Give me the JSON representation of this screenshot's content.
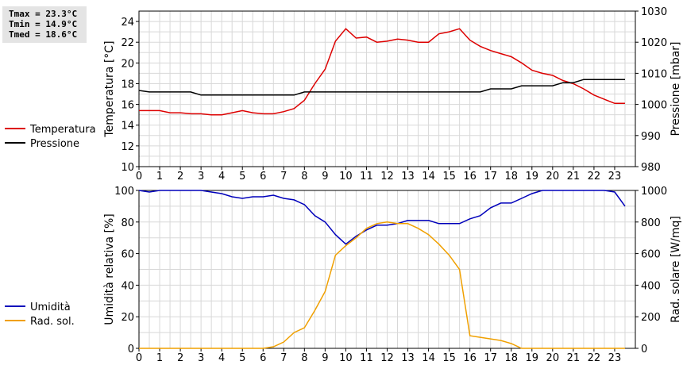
{
  "stats": {
    "tmax": "Tmax = 23.3°C",
    "tmin": "Tmin = 14.9°C",
    "tmed": "Tmed = 18.6°C"
  },
  "chart_data": [
    {
      "type": "line",
      "title": "",
      "xlabel": "",
      "ylabel": "Temperatura [°C]",
      "ylabel_right": "Pressione [mbar]",
      "xlim": [
        0,
        24
      ],
      "ylim": [
        10,
        25
      ],
      "ylim_right": [
        980,
        1030
      ],
      "x_ticks": [
        0,
        1,
        2,
        3,
        4,
        5,
        6,
        7,
        8,
        9,
        10,
        11,
        12,
        13,
        14,
        15,
        16,
        17,
        18,
        19,
        20,
        21,
        22,
        23
      ],
      "y_ticks": [
        10,
        12,
        14,
        16,
        18,
        20,
        22,
        24
      ],
      "y_ticks_right": [
        980,
        990,
        1000,
        1010,
        1020,
        1030
      ],
      "grid": true,
      "legend": "left",
      "series": [
        {
          "name": "Temperatura",
          "color": "#dd0000",
          "axis": "left",
          "x": [
            0,
            0.5,
            1,
            1.5,
            2,
            2.5,
            3,
            3.5,
            4,
            4.5,
            5,
            5.5,
            6,
            6.5,
            7,
            7.5,
            8,
            8.5,
            9,
            9.5,
            10,
            10.5,
            11,
            11.5,
            12,
            12.5,
            13,
            13.5,
            14,
            14.5,
            15,
            15.5,
            16,
            16.5,
            17,
            17.5,
            18,
            18.5,
            19,
            19.5,
            20,
            20.5,
            21,
            21.5,
            22,
            22.5,
            23,
            23.5
          ],
          "y": [
            15.4,
            15.4,
            15.4,
            15.2,
            15.2,
            15.1,
            15.1,
            15.0,
            15.0,
            15.2,
            15.4,
            15.2,
            15.1,
            15.1,
            15.3,
            15.6,
            16.4,
            18.0,
            19.4,
            22.1,
            23.3,
            22.4,
            22.5,
            22.0,
            22.1,
            22.3,
            22.2,
            22.0,
            22.0,
            22.8,
            23.0,
            23.3,
            22.2,
            21.6,
            21.2,
            20.9,
            20.6,
            20.0,
            19.3,
            19.0,
            18.8,
            18.3,
            18.0,
            17.5,
            16.9,
            16.5,
            16.1,
            16.1
          ]
        },
        {
          "name": "Pressione",
          "color": "#000000",
          "axis": "right",
          "x": [
            0,
            0.5,
            1,
            1.5,
            2,
            2.5,
            3,
            3.5,
            4,
            4.5,
            5,
            5.5,
            6,
            6.5,
            7,
            7.5,
            8,
            8.5,
            9,
            9.5,
            10,
            10.5,
            11,
            11.5,
            12,
            12.5,
            13,
            13.5,
            14,
            14.5,
            15,
            15.5,
            16,
            16.5,
            17,
            17.5,
            18,
            18.5,
            19,
            19.5,
            20,
            20.5,
            21,
            21.5,
            22,
            22.5,
            23,
            23.5
          ],
          "y": [
            1004.5,
            1004,
            1004,
            1004,
            1004,
            1004,
            1003,
            1003,
            1003,
            1003,
            1003,
            1003,
            1003,
            1003,
            1003,
            1003,
            1004,
            1004,
            1004,
            1004,
            1004,
            1004,
            1004,
            1004,
            1004,
            1004,
            1004,
            1004,
            1004,
            1004,
            1004,
            1004,
            1004,
            1004,
            1005,
            1005,
            1005,
            1006,
            1006,
            1006,
            1006,
            1007,
            1007,
            1008,
            1008,
            1008,
            1008,
            1008
          ]
        }
      ]
    },
    {
      "type": "line",
      "title": "",
      "xlabel": "",
      "ylabel": "Umidità relativa [%]",
      "ylabel_right": "Rad. solare [W/mq]",
      "xlim": [
        0,
        24
      ],
      "ylim": [
        0,
        100
      ],
      "ylim_right": [
        0,
        1000
      ],
      "x_ticks": [
        0,
        1,
        2,
        3,
        4,
        5,
        6,
        7,
        8,
        9,
        10,
        11,
        12,
        13,
        14,
        15,
        16,
        17,
        18,
        19,
        20,
        21,
        22,
        23
      ],
      "y_ticks": [
        0,
        20,
        40,
        60,
        80,
        100
      ],
      "y_ticks_right": [
        0,
        200,
        400,
        600,
        800,
        1000
      ],
      "grid": true,
      "legend": "left",
      "series": [
        {
          "name": "Umidità",
          "color": "#0000bb",
          "axis": "left",
          "x": [
            0,
            0.5,
            1,
            1.5,
            2,
            2.5,
            3,
            3.5,
            4,
            4.5,
            5,
            5.5,
            6,
            6.5,
            7,
            7.5,
            8,
            8.5,
            9,
            9.5,
            10,
            10.5,
            11,
            11.5,
            12,
            12.5,
            13,
            13.5,
            14,
            14.5,
            15,
            15.5,
            16,
            16.5,
            17,
            17.5,
            18,
            18.5,
            19,
            19.5,
            20,
            20.5,
            21,
            21.5,
            22,
            22.5,
            23,
            23.5
          ],
          "y": [
            100,
            99,
            100,
            100,
            100,
            100,
            100,
            99,
            98,
            96,
            95,
            96,
            96,
            97,
            95,
            94,
            91,
            84,
            80,
            72,
            66,
            71,
            75,
            78,
            78,
            79,
            81,
            81,
            81,
            79,
            79,
            79,
            82,
            84,
            89,
            92,
            92,
            95,
            98,
            100,
            100,
            100,
            100,
            100,
            100,
            100,
            99,
            90
          ]
        },
        {
          "name": "Rad. sol.",
          "color": "#f0a000",
          "axis": "right",
          "x": [
            0,
            0.5,
            1,
            1.5,
            2,
            2.5,
            3,
            3.5,
            4,
            4.5,
            5,
            5.5,
            6,
            6.5,
            7,
            7.5,
            8,
            8.5,
            9,
            9.5,
            10,
            10.5,
            11,
            11.5,
            12,
            12.5,
            13,
            13.5,
            14,
            14.5,
            15,
            15.5,
            16,
            16.5,
            17,
            17.5,
            18,
            18.5,
            19,
            19.5,
            20,
            20.5,
            21,
            21.5,
            22,
            22.5,
            23,
            23.5
          ],
          "y": [
            0,
            0,
            0,
            0,
            0,
            0,
            0,
            0,
            0,
            0,
            0,
            0,
            0,
            10,
            40,
            100,
            130,
            240,
            360,
            590,
            650,
            700,
            760,
            790,
            800,
            790,
            790,
            760,
            720,
            660,
            590,
            500,
            80,
            70,
            60,
            50,
            30,
            0,
            0,
            0,
            0,
            0,
            0,
            0,
            0,
            0,
            0,
            0
          ]
        }
      ]
    }
  ]
}
